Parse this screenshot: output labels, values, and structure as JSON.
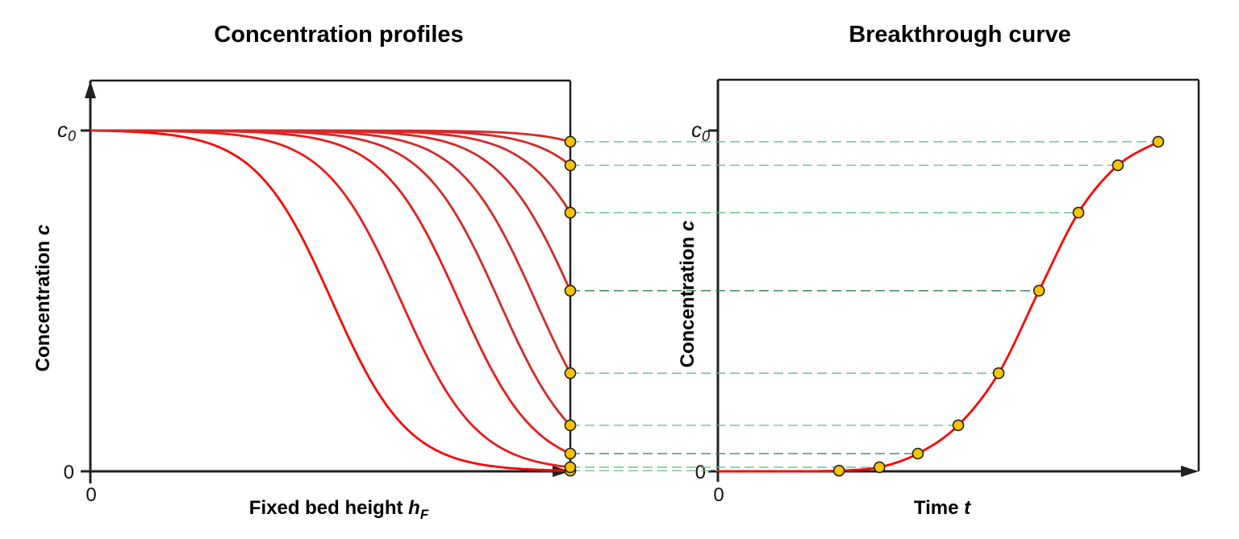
{
  "chart_data": [
    {
      "type": "line",
      "title": "Concentration profiles",
      "xlabel": {
        "main": "Fixed bed height ",
        "var": "h",
        "sub": "F"
      },
      "ylabel": {
        "main": "Concentration ",
        "var": "c"
      },
      "y_ticks": [
        {
          "var": "c",
          "sub": "0",
          "value": 1
        },
        {
          "label": "0",
          "value": 0
        }
      ],
      "x_ticks": [
        {
          "label": "0",
          "value": 0
        }
      ],
      "x_range": [
        0,
        1
      ],
      "y_range": [
        0,
        1
      ],
      "y_unit": "fraction of c0",
      "profiles_outlet_values": [
        0.002,
        0.012,
        0.052,
        0.135,
        0.288,
        0.53,
        0.759,
        0.898,
        0.967
      ],
      "series_color": "#e02020",
      "marker_color": "#f5c400",
      "grid": false
    },
    {
      "type": "line",
      "title": "Breakthrough curve",
      "xlabel": {
        "main": "Time ",
        "var": "t"
      },
      "ylabel": {
        "main": "Concentration ",
        "var": "c"
      },
      "y_ticks": [
        {
          "var": "c",
          "sub": "0",
          "value": 1
        },
        {
          "label": "0",
          "value": 0
        }
      ],
      "x_ticks": [
        {
          "label": "0",
          "value": 0
        }
      ],
      "x_range": [
        0,
        1
      ],
      "y_range": [
        0,
        1
      ],
      "points": [
        {
          "t": 0.252,
          "c": 0.002
        },
        {
          "t": 0.336,
          "c": 0.012
        },
        {
          "t": 0.416,
          "c": 0.052
        },
        {
          "t": 0.5,
          "c": 0.135
        },
        {
          "t": 0.584,
          "c": 0.288
        },
        {
          "t": 0.668,
          "c": 0.53
        },
        {
          "t": 0.75,
          "c": 0.759
        },
        {
          "t": 0.832,
          "c": 0.898
        },
        {
          "t": 0.916,
          "c": 0.967
        }
      ],
      "series_color": "#ff0000",
      "marker_color": "#f5c400",
      "connector_color": "#5cbf8a",
      "grid": false
    }
  ]
}
